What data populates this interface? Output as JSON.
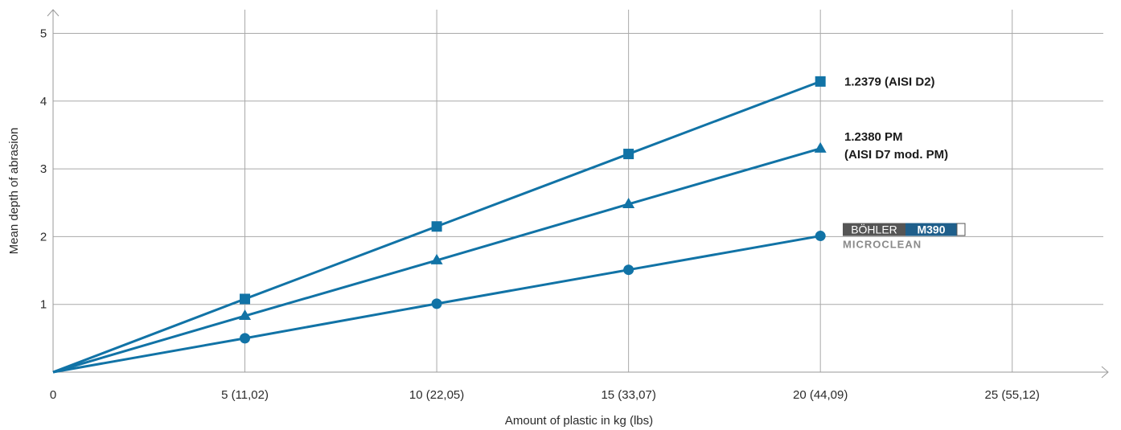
{
  "chart_data": {
    "type": "line",
    "title": "",
    "xlabel": "Amount of plastic in kg (lbs)",
    "ylabel": "Mean depth of abrasion",
    "xlim": [
      0,
      27.5
    ],
    "ylim": [
      0,
      5.35
    ],
    "x_ticks": [
      {
        "value": 0,
        "label": "0"
      },
      {
        "value": 5,
        "label": "5 (11,02)"
      },
      {
        "value": 10,
        "label": "10 (22,05)"
      },
      {
        "value": 15,
        "label": "15 (33,07)"
      },
      {
        "value": 20,
        "label": "20 (44,09)"
      },
      {
        "value": 25,
        "label": "25 (55,12)"
      }
    ],
    "y_ticks": [
      {
        "value": 1,
        "label": "1"
      },
      {
        "value": 2,
        "label": "2"
      },
      {
        "value": 3,
        "label": "3"
      },
      {
        "value": 4,
        "label": "4"
      },
      {
        "value": 5,
        "label": "5"
      }
    ],
    "grid": true,
    "x": [
      0,
      5,
      10,
      15,
      20
    ],
    "series": [
      {
        "name": "1.2379 (AISI D2)",
        "label_lines": [
          "1.2379 (AISI D2)"
        ],
        "marker": "square",
        "values": [
          0,
          1.08,
          2.15,
          3.22,
          4.29
        ]
      },
      {
        "name": "1.2380 PM (AISI D7 mod. PM)",
        "label_lines": [
          "1.2380 PM",
          "(AISI D7 mod. PM)"
        ],
        "marker": "triangle",
        "values": [
          0,
          0.83,
          1.65,
          2.48,
          3.3
        ]
      },
      {
        "name": "BÖHLER M390 MICROCLEAN",
        "label_lines": [],
        "marker": "circle",
        "values": [
          0,
          0.5,
          1.01,
          1.51,
          2.01
        ]
      }
    ],
    "colors": {
      "series": "#1173a6",
      "grid": "#a9a9a9",
      "axis": "#9a9a9a",
      "logo_dark": "#555555",
      "logo_blue": "#1f5f8b"
    },
    "logo": {
      "brand": "BÖHLER",
      "grade": "M390",
      "sub": "MICROCLEAN"
    }
  }
}
